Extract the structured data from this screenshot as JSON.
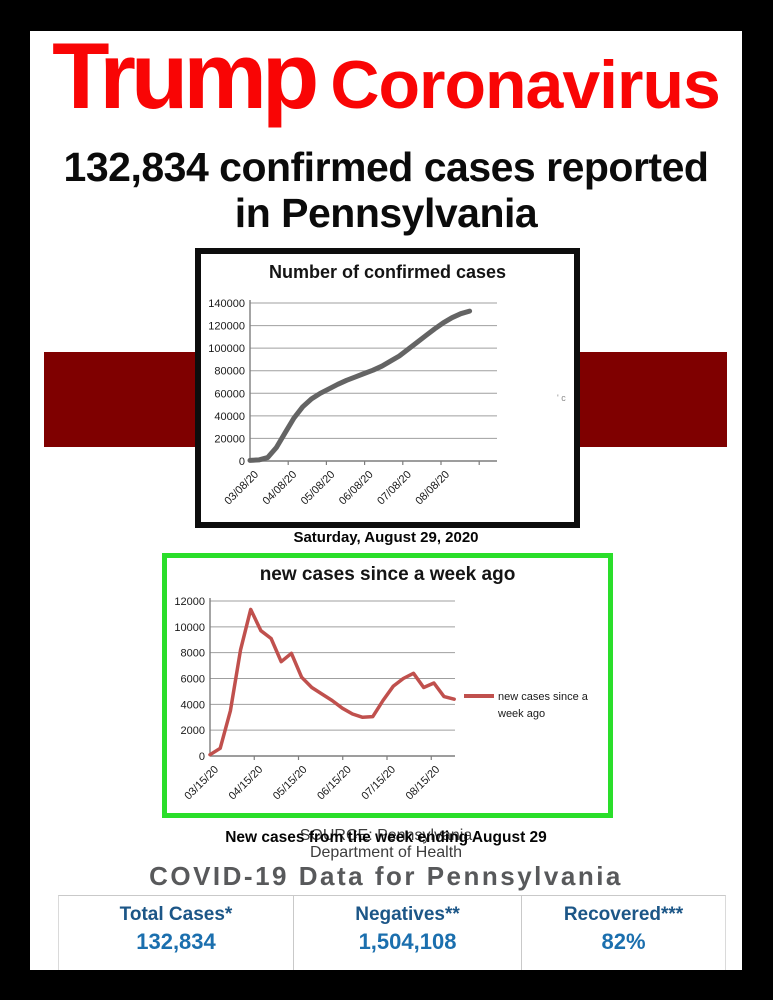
{
  "page": {
    "title_word1": "Trump",
    "title_word2": "Coronavirus",
    "title_color": "#f90505",
    "headline_line1": "132,834 confirmed cases reported",
    "headline_line2": "in Pennsylvania",
    "caption_chart1": "Saturday, August 29, 2020",
    "caption_chart2": "New cases from the week ending August 29",
    "source_line1": "SOURCE: Pennsylvania",
    "source_line2": "Department of Health",
    "section_heading": "COVID-19 Data for Pennsylvania",
    "artifact_text": "' c"
  },
  "colors": {
    "band_maroon": "#7f0000",
    "frame_black": "#000000",
    "chart1_border": "#0d0d0d",
    "chart2_border": "#2ade2a",
    "chart1_line": "#646464",
    "chart2_line": "#c0504d",
    "grid_gray": "#9f9f9f",
    "stat_label_blue": "#1c5687",
    "stat_value_blue": "#1b6fae",
    "heading_gray": "#58595b"
  },
  "chart_data": [
    {
      "type": "line",
      "title": "Number of confirmed cases",
      "xlabel": "",
      "ylabel": "",
      "ylim": [
        0,
        140000
      ],
      "ytick_step": 20000,
      "x_tick_labels": [
        "03/08/20",
        "04/08/20",
        "05/08/20",
        "06/08/20",
        "07/08/20",
        "08/08/20"
      ],
      "x_note": "weekly estimates read from plot, 03/08/20 through 08/29/20",
      "values": [
        500,
        1000,
        3000,
        12000,
        25000,
        38000,
        48000,
        55000,
        60000,
        64000,
        68000,
        71500,
        74500,
        77500,
        80500,
        84000,
        88500,
        93000,
        99000,
        105000,
        111000,
        117000,
        122500,
        127000,
        130500,
        132834
      ],
      "line_color": "#646464",
      "grid": true,
      "legend": null
    },
    {
      "type": "line",
      "title": "new cases since a week ago",
      "xlabel": "",
      "ylabel": "",
      "ylim": [
        0,
        12000
      ],
      "ytick_step": 2000,
      "x_tick_labels": [
        "03/15/20",
        "04/15/20",
        "05/15/20",
        "06/15/20",
        "07/15/20",
        "08/15/20"
      ],
      "x_note": "weekly estimates read from plot, 03/15/20 through 08/29/20",
      "values": [
        100,
        600,
        3500,
        8200,
        11350,
        9700,
        9100,
        7300,
        7950,
        6100,
        5300,
        4800,
        4300,
        3700,
        3250,
        3000,
        3050,
        4300,
        5400,
        6000,
        6400,
        5300,
        5650,
        4600,
        4400
      ],
      "line_color": "#c0504d",
      "grid": true,
      "legend_lines": [
        "new cases since a",
        "week ago"
      ],
      "legend_position": "right"
    }
  ],
  "stats": {
    "columns": [
      {
        "label": "Total Cases*",
        "value": "132,834"
      },
      {
        "label": "Negatives**",
        "value": "1,504,108"
      },
      {
        "label": "Recovered***",
        "value": "82%"
      }
    ]
  }
}
